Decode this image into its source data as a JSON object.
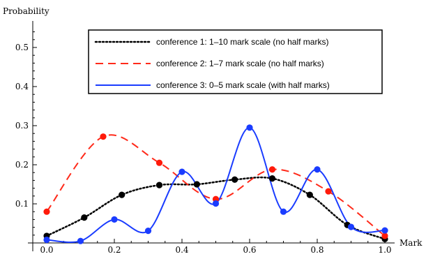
{
  "chart_data": {
    "type": "line",
    "title": "",
    "xlabel": "Mark",
    "ylabel": "Probability",
    "xlim": [
      0,
      1.0
    ],
    "ylim": [
      0,
      0.55
    ],
    "x_ticks": [
      "0.0",
      "0.2",
      "0.4",
      "0.6",
      "0.8",
      "1.0"
    ],
    "y_ticks": [
      "0.1",
      "0.2",
      "0.3",
      "0.4",
      "0.5"
    ],
    "grid": false,
    "legend_position": "top-right",
    "series": [
      {
        "name": "conference 1: 1–10 mark scale (no half marks)",
        "color": "#000000",
        "style": "dotted",
        "x": [
          0.0,
          0.111,
          0.222,
          0.333,
          0.444,
          0.556,
          0.667,
          0.778,
          0.889,
          1.0
        ],
        "y": [
          0.018,
          0.065,
          0.123,
          0.148,
          0.15,
          0.162,
          0.165,
          0.123,
          0.046,
          0.01
        ]
      },
      {
        "name": "conference 2: 1–7 mark scale (no half marks)",
        "color": "#ff2a1a",
        "style": "dashed",
        "x": [
          0.0,
          0.167,
          0.333,
          0.5,
          0.667,
          0.833,
          1.0
        ],
        "y": [
          0.08,
          0.272,
          0.205,
          0.112,
          0.188,
          0.132,
          0.018
        ]
      },
      {
        "name": "conference 3: 0–5  mark scale (with half marks)",
        "color": "#1a3cff",
        "style": "solid",
        "x": [
          0.0,
          0.1,
          0.2,
          0.3,
          0.4,
          0.5,
          0.6,
          0.7,
          0.8,
          0.9,
          1.0
        ],
        "y": [
          0.008,
          0.005,
          0.06,
          0.031,
          0.182,
          0.101,
          0.295,
          0.08,
          0.188,
          0.041,
          0.032
        ]
      }
    ]
  }
}
